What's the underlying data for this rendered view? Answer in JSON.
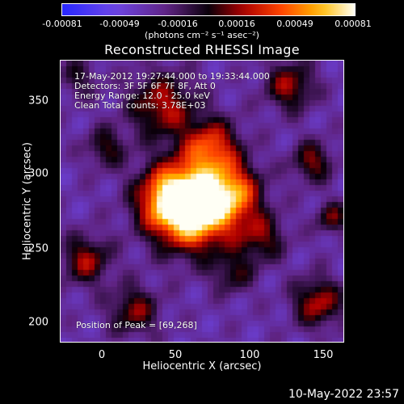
{
  "colorbar": {
    "ticks": [
      "-0.00081",
      "-0.00049",
      "-0.00016",
      "0.00016",
      "0.00049",
      "0.00081"
    ],
    "units": "(photons cm⁻² s⁻¹ asec⁻²)"
  },
  "title": "Reconstructed RHESSI Image",
  "annotations": {
    "time_range": "17-May-2012 19:27:44.000 to 19:33:44.000",
    "detectors": "Detectors: 3F 5F 6F 7F 8F, Att 0",
    "energy_range": "Energy Range: 12.0 - 25.0 keV",
    "clean_counts": "Clean     Total counts: 3.78E+03",
    "peak_position": "Position of Peak = [69,268]"
  },
  "axes": {
    "x_label": "Heliocentric X (arcsec)",
    "y_label": "Heliocentric Y (arcsec)",
    "x_ticks": [
      "0",
      "50",
      "100",
      "150"
    ],
    "y_ticks": [
      "350",
      "300",
      "250",
      "200"
    ],
    "x_range": [
      -32,
      163
    ],
    "y_range": [
      184,
      378
    ]
  },
  "footer": {
    "date": "10-May-2022 23:57"
  },
  "colors": {
    "background": "#000000",
    "foreground": "#ffffff"
  }
}
